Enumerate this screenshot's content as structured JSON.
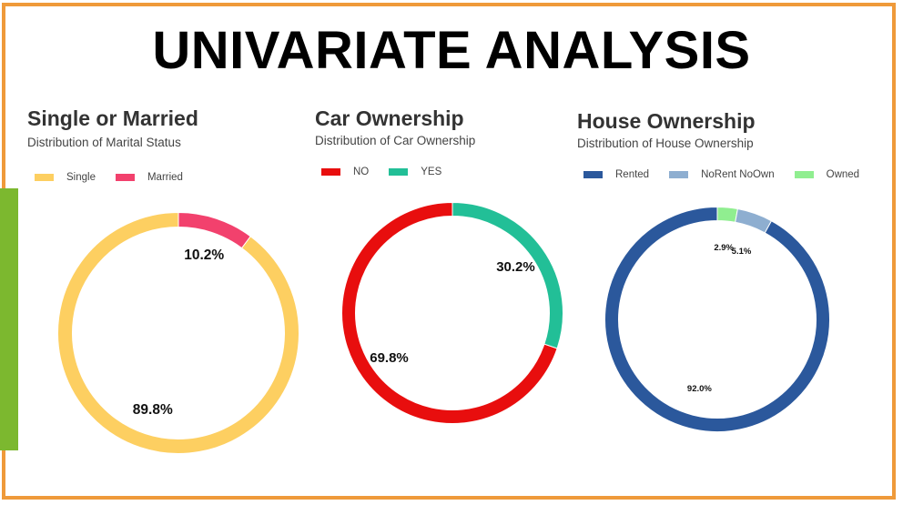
{
  "page": {
    "title": "UNIVARIATE ANALYSIS",
    "colors": {
      "frame_border": "#ef9a3a",
      "accent_bar": "#7cb82f"
    }
  },
  "chart_data": [
    {
      "type": "pie",
      "variant": "donut",
      "title": "Single or Married",
      "subtitle": "Distribution of Marital Status",
      "legend_position": "top-left",
      "slices": [
        {
          "label": "Married",
          "value": 10.2,
          "display": "10.2%",
          "color": "#f2416d"
        },
        {
          "label": "Single",
          "value": 89.8,
          "display": "89.8%",
          "color": "#fdcf61"
        }
      ],
      "legend_order": [
        "Single",
        "Married"
      ]
    },
    {
      "type": "pie",
      "variant": "donut",
      "title": "Car Ownership",
      "subtitle": "Distribution of Car Ownership",
      "legend_position": "top-left",
      "slices": [
        {
          "label": "YES",
          "value": 30.2,
          "display": "30.2%",
          "color": "#22bf97"
        },
        {
          "label": "NO",
          "value": 69.8,
          "display": "69.8%",
          "color": "#e80e0e"
        }
      ],
      "legend_order": [
        "NO",
        "YES"
      ]
    },
    {
      "type": "pie",
      "variant": "donut",
      "title": "House Ownership",
      "subtitle": "Distribution of House Ownership",
      "legend_position": "top-left",
      "slices": [
        {
          "label": "Owned",
          "value": 2.9,
          "display": "2.9%",
          "color": "#90ee90"
        },
        {
          "label": "NoRent NoOwn",
          "value": 5.1,
          "display": "5.1%",
          "color": "#8eaed0"
        },
        {
          "label": "Rented",
          "value": 92.0,
          "display": "92.0%",
          "color": "#2b589c"
        }
      ],
      "legend_order": [
        "Rented",
        "NoRent NoOwn",
        "Owned"
      ]
    }
  ]
}
